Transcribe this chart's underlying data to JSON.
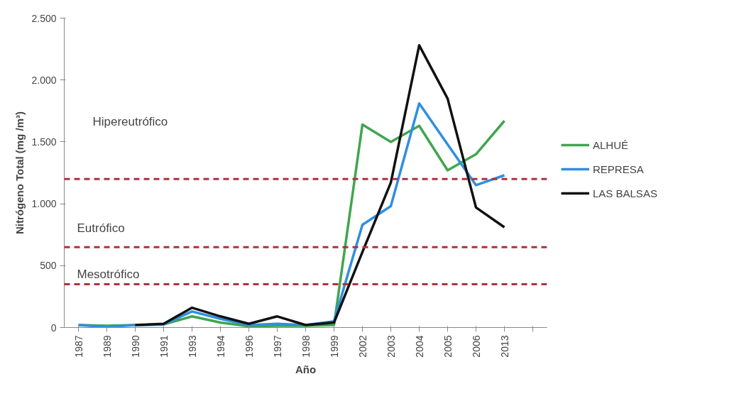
{
  "chart_data": {
    "type": "line",
    "xlabel": "Año",
    "ylabel": "Nitrógeno Total (mg /m³)",
    "categories": [
      "1987",
      "1989",
      "1990",
      "1991",
      "1993",
      "1994",
      "1996",
      "1997",
      "1998",
      "1999",
      "2002",
      "2003",
      "2004",
      "2005",
      "2006",
      "2013",
      null
    ],
    "series": [
      {
        "name": "ALHUÉ",
        "color": "#3fa64f",
        "values": [
          20,
          15,
          20,
          25,
          90,
          40,
          10,
          15,
          15,
          20,
          1640,
          1500,
          1630,
          1270,
          1400,
          1670,
          null
        ]
      },
      {
        "name": "REPRESA",
        "color": "#2f8fe0",
        "values": [
          20,
          5,
          20,
          25,
          130,
          70,
          20,
          30,
          20,
          50,
          830,
          980,
          1810,
          1480,
          1150,
          1230,
          null
        ]
      },
      {
        "name": "LAS BALSAS",
        "color": "#111111",
        "values": [
          null,
          null,
          20,
          30,
          160,
          90,
          30,
          90,
          20,
          40,
          610,
          1170,
          2280,
          1850,
          970,
          810,
          null
        ]
      }
    ],
    "ylim": [
      0,
      2500
    ],
    "yticks": [
      0,
      {
        "value": 500,
        "label": "500"
      },
      {
        "value": 1000,
        "label": "1.000"
      },
      {
        "value": 1500,
        "label": "1.500"
      },
      {
        "value": 2000,
        "label": "2.000"
      },
      {
        "value": 2500,
        "label": "2.500"
      }
    ],
    "ref_lines": [
      {
        "axis": "y",
        "value": 1200,
        "color": "#b0303f",
        "line_style": "dashed"
      },
      {
        "axis": "y",
        "value": 650,
        "color": "#b0303f",
        "line_style": "dashed"
      },
      {
        "axis": "y",
        "value": 350,
        "color": "#b0303f",
        "line_style": "dashed"
      }
    ],
    "annotations": [
      "Hipereutrófico",
      "Eutrófico",
      "Mesotrófico"
    ],
    "grid": false,
    "legend": "right",
    "line_style": "solid",
    "marker": "none"
  }
}
